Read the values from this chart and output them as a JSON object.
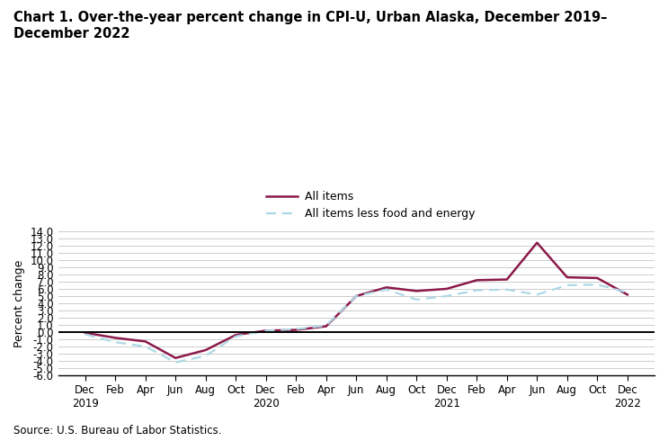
{
  "title_line1": "Chart 1. Over-the-year percent change in CPI-U, Urban Alaska, December 2019–",
  "title_line2": "December 2022",
  "ylabel": "Percent change",
  "source": "Source: U.S. Bureau of Labor Statistics.",
  "ylim": [
    -6.0,
    14.0
  ],
  "yticks": [
    -6.0,
    -5.0,
    -4.0,
    -3.0,
    -2.0,
    -1.0,
    0.0,
    1.0,
    2.0,
    3.0,
    4.0,
    5.0,
    6.0,
    7.0,
    8.0,
    9.0,
    10.0,
    11.0,
    12.0,
    13.0,
    14.0
  ],
  "x_labels": [
    "Dec\n2019",
    "Feb",
    "Apr",
    "Jun",
    "Aug",
    "Oct",
    "Dec\n2020",
    "Feb",
    "Apr",
    "Jun",
    "Aug",
    "Oct",
    "Dec\n2021",
    "Feb",
    "Apr",
    "Jun",
    "Aug",
    "Oct",
    "Dec\n2022"
  ],
  "all_items": [
    -0.1,
    -0.8,
    -1.3,
    -3.6,
    -2.5,
    -0.4,
    0.2,
    0.3,
    0.8,
    5.0,
    6.2,
    5.7,
    6.0,
    7.2,
    7.3,
    12.4,
    7.6,
    7.5,
    5.2
  ],
  "core_items": [
    -0.3,
    -1.4,
    -2.0,
    -4.2,
    -3.3,
    -0.6,
    0.2,
    0.4,
    0.9,
    5.0,
    5.9,
    4.5,
    5.0,
    5.8,
    5.9,
    5.2,
    6.5,
    6.6,
    5.5
  ],
  "all_items_color": "#8B1A4A",
  "core_items_color": "#ADD8E6",
  "legend_label_1": "All items",
  "legend_label_2": "All items less food and energy",
  "background_color": "#ffffff",
  "grid_color": "#cccccc"
}
